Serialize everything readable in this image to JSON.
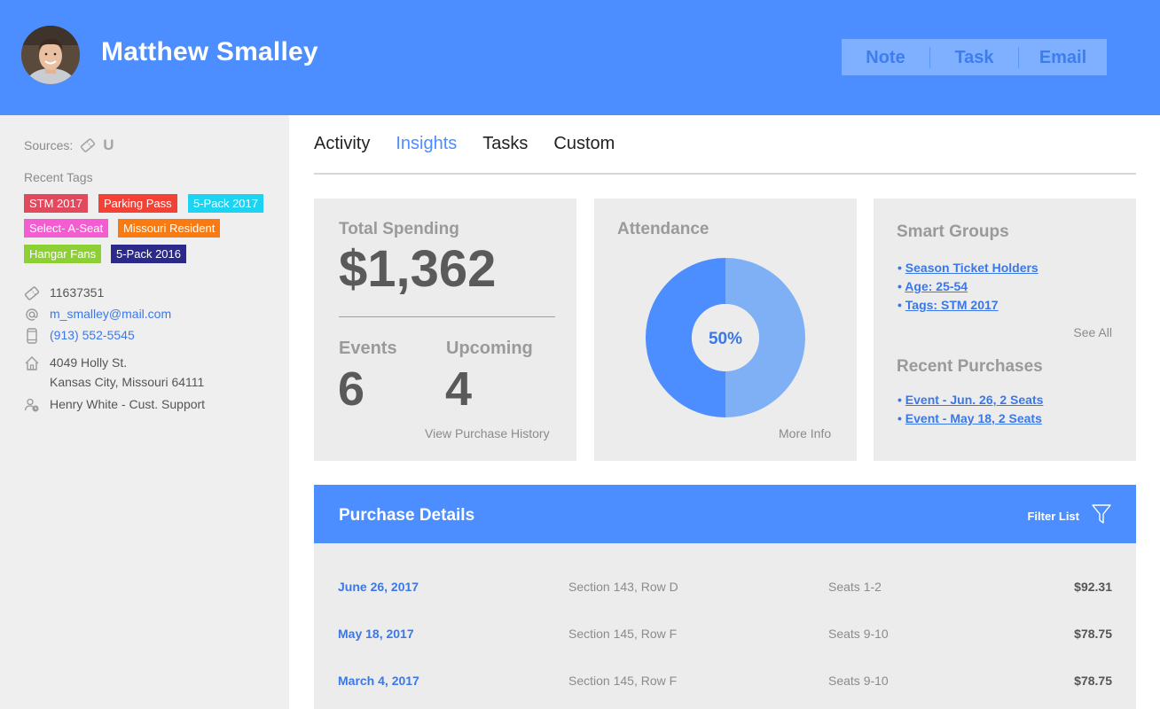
{
  "header": {
    "name": "Matthew Smalley",
    "actions": [
      "Note",
      "Task",
      "Email"
    ]
  },
  "sidebar": {
    "sources_label": "Sources:",
    "sources_u": "U",
    "recent_tags_title": "Recent Tags",
    "tags": [
      {
        "label": "STM 2017",
        "color": "#e04a5c"
      },
      {
        "label": "Parking Pass",
        "color": "#f34135"
      },
      {
        "label": "5-Pack 2017",
        "color": "#1dd3f2"
      },
      {
        "label": "Select- A-Seat",
        "color": "#f45cd1"
      },
      {
        "label": "Missouri Resident",
        "color": "#f77b12"
      },
      {
        "label": "Hangar Fans",
        "color": "#8cd034"
      },
      {
        "label": "5-Pack 2016",
        "color": "#2b2a8a"
      }
    ],
    "account_id": "11637351",
    "email": "m_smalley@mail.com",
    "phone": "(913) 552-5545",
    "address_line1": "4049 Holly St.",
    "address_line2": "Kansas City, Missouri 64111",
    "rep": "Henry White - Cust. Support"
  },
  "tabs": [
    {
      "label": "Activity",
      "active": false
    },
    {
      "label": "Insights",
      "active": true
    },
    {
      "label": "Tasks",
      "active": false
    },
    {
      "label": "Custom",
      "active": false
    }
  ],
  "spending": {
    "title": "Total Spending",
    "amount": "$1,362",
    "events_label": "Events",
    "events_value": "6",
    "upcoming_label": "Upcoming",
    "upcoming_value": "4",
    "link": "View Purchase History"
  },
  "attendance": {
    "title": "Attendance",
    "percent_label": "50%",
    "percent": 50,
    "link": "More Info",
    "colors": {
      "attended": "#7fb0f5",
      "missed": "#4c8dff"
    }
  },
  "smart_groups": {
    "title": "Smart Groups",
    "items": [
      "Season Ticket Holders",
      "Age: 25-54",
      "Tags: STM 2017"
    ],
    "see_all": "See All",
    "recent_title": "Recent Purchases",
    "recent_items": [
      "Event - Jun. 26, 2 Seats",
      "Event - May 18, 2 Seats"
    ]
  },
  "purchase_details": {
    "title": "Purchase Details",
    "filter_label": "Filter List",
    "rows": [
      {
        "date": "June 26, 2017",
        "section": "Section 143, Row D",
        "seats": "Seats 1-2",
        "price": "$92.31"
      },
      {
        "date": "May 18, 2017",
        "section": "Section 145, Row F",
        "seats": "Seats 9-10",
        "price": "$78.75"
      },
      {
        "date": "March 4, 2017",
        "section": "Section 145, Row F",
        "seats": "Seats 9-10",
        "price": "$78.75"
      }
    ]
  }
}
